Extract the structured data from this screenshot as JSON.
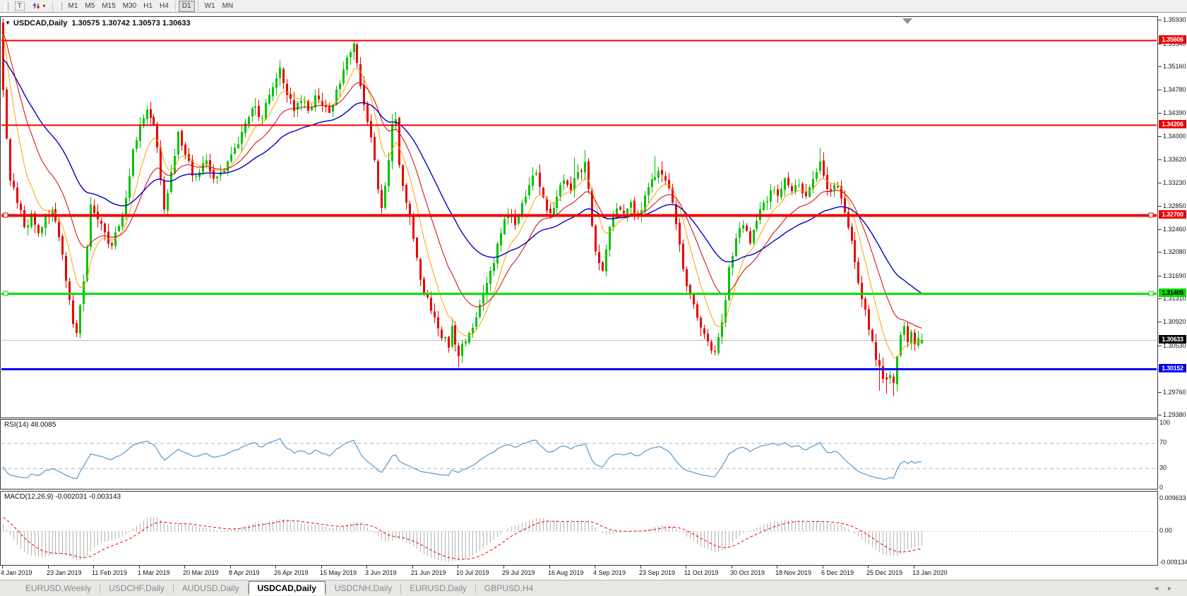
{
  "toolbar": {
    "text_tool_glyph": "T",
    "caret_glyph": "▾",
    "timeframes": [
      "M1",
      "M5",
      "M15",
      "M30",
      "H1",
      "H4",
      "D1",
      "W1",
      "MN"
    ],
    "active_timeframe": "D1"
  },
  "chart": {
    "collapse_glyph": "▼",
    "title": "USDCAD,Daily",
    "ohlc_text": "1.30575 1.30742 1.30573 1.30633"
  },
  "rsi": {
    "label": "RSI(14) 48.0085",
    "value": 48.0085,
    "axis": [
      {
        "text": "100",
        "v": 100
      },
      {
        "text": "70",
        "v": 70
      },
      {
        "text": "30",
        "v": 30
      },
      {
        "text": "0",
        "v": 0
      }
    ]
  },
  "macd": {
    "label": "MACD(12,26,9) -0.002031 -0.003143",
    "main_value": -0.002031,
    "signal_value": -0.003143,
    "axis": [
      {
        "text": "0.009633",
        "y": 10
      },
      {
        "text": "0.00",
        "y": 56
      },
      {
        "text": "-0.009134",
        "y": 101
      }
    ]
  },
  "price_axis": {
    "ticks": [
      "1.35930",
      "1.35540",
      "1.35160",
      "1.34780",
      "1.34390",
      "1.34000",
      "1.33620",
      "1.33230",
      "1.32850",
      "1.32460",
      "1.32080",
      "1.31690",
      "1.31310",
      "1.30920",
      "1.30530",
      "1.30140",
      "1.29760",
      "1.29380"
    ],
    "badges": [
      {
        "text": "1.35606",
        "price": 1.35606,
        "bg": "#ee0000",
        "fg": "#ffffff"
      },
      {
        "text": "1.34206",
        "price": 1.34206,
        "bg": "#ee0000",
        "fg": "#ffffff"
      },
      {
        "text": "1.32700",
        "price": 1.327,
        "bg": "#ee0000",
        "fg": "#ffffff"
      },
      {
        "text": "1.31405",
        "price": 1.31405,
        "bg": "#00dd00",
        "fg": "#000000"
      },
      {
        "text": "1.30633",
        "price": 1.30633,
        "bg": "#000000",
        "fg": "#ffffff"
      },
      {
        "text": "1.30152",
        "price": 1.30152,
        "bg": "#0000ee",
        "fg": "#ffffff"
      }
    ]
  },
  "date_axis": [
    "4 Jan 2019",
    "23 Jan 2019",
    "11 Feb 2019",
    "1 Mar 2019",
    "20 Mar 2019",
    "8 Apr 2019",
    "26 Apr 2019",
    "15 May 2019",
    "3 Jun 2019",
    "21 Jun 2019",
    "10 Jul 2019",
    "29 Jul 2019",
    "16 Aug 2019",
    "4 Sep 2019",
    "23 Sep 2019",
    "11 Oct 2019",
    "30 Oct 2019",
    "18 Nov 2019",
    "6 Dec 2019",
    "25 Dec 2019",
    "13 Jan 2020"
  ],
  "tabs": {
    "items": [
      {
        "label": "EURUSD,Weekly",
        "active": false
      },
      {
        "label": "USDCHF,Daily",
        "active": false
      },
      {
        "label": "AUDUSD,Daily",
        "active": false
      },
      {
        "label": "USDCAD,Daily",
        "active": true
      },
      {
        "label": "USDCNH,Daily",
        "active": false
      },
      {
        "label": "EURUSD,Daily",
        "active": false
      },
      {
        "label": "GBPUSD,H4",
        "active": false
      }
    ],
    "scroll_left": "◄",
    "scroll_right": "►"
  },
  "chart_data": {
    "type": "candlestick",
    "symbol": "USDCAD",
    "timeframe": "Daily",
    "current_bar": {
      "open": 1.30575,
      "high": 1.30742,
      "low": 1.30573,
      "close": 1.30633
    },
    "bar_count": 263,
    "bar_step": 4.965,
    "bars_per_tick": 13,
    "ylim": [
      1.2935,
      1.3597
    ],
    "x_tick_labels": [
      "4 Jan 2019",
      "23 Jan 2019",
      "11 Feb 2019",
      "1 Mar 2019",
      "20 Mar 2019",
      "8 Apr 2019",
      "26 Apr 2019",
      "15 May 2019",
      "3 Jun 2019",
      "21 Jun 2019",
      "10 Jul 2019",
      "29 Jul 2019",
      "16 Aug 2019",
      "4 Sep 2019",
      "23 Sep 2019",
      "11 Oct 2019",
      "30 Oct 2019",
      "18 Nov 2019",
      "6 Dec 2019",
      "25 Dec 2019",
      "13 Jan 2020"
    ],
    "close_anchors": [
      [
        0,
        1.348
      ],
      [
        1,
        1.3395
      ],
      [
        2,
        1.333
      ],
      [
        4,
        1.329
      ],
      [
        6,
        1.325
      ],
      [
        8,
        1.3272
      ],
      [
        10,
        1.3242
      ],
      [
        12,
        1.3268
      ],
      [
        14,
        1.328
      ],
      [
        16,
        1.3232
      ],
      [
        18,
        1.316
      ],
      [
        20,
        1.3092
      ],
      [
        21,
        1.3076
      ],
      [
        23,
        1.316
      ],
      [
        25,
        1.3288
      ],
      [
        27,
        1.3262
      ],
      [
        29,
        1.324
      ],
      [
        31,
        1.3222
      ],
      [
        33,
        1.3252
      ],
      [
        35,
        1.33
      ],
      [
        37,
        1.3378
      ],
      [
        39,
        1.3418
      ],
      [
        41,
        1.3444
      ],
      [
        43,
        1.342
      ],
      [
        45,
        1.333
      ],
      [
        46,
        1.3282
      ],
      [
        48,
        1.334
      ],
      [
        50,
        1.3408
      ],
      [
        52,
        1.3372
      ],
      [
        54,
        1.3336
      ],
      [
        56,
        1.3342
      ],
      [
        58,
        1.336
      ],
      [
        60,
        1.333
      ],
      [
        62,
        1.3342
      ],
      [
        64,
        1.336
      ],
      [
        66,
        1.3382
      ],
      [
        68,
        1.341
      ],
      [
        70,
        1.3432
      ],
      [
        72,
        1.345
      ],
      [
        74,
        1.343
      ],
      [
        76,
        1.3468
      ],
      [
        78,
        1.3498
      ],
      [
        79,
        1.3514
      ],
      [
        81,
        1.3472
      ],
      [
        83,
        1.3442
      ],
      [
        85,
        1.346
      ],
      [
        87,
        1.3442
      ],
      [
        89,
        1.347
      ],
      [
        91,
        1.3452
      ],
      [
        93,
        1.344
      ],
      [
        95,
        1.3478
      ],
      [
        97,
        1.3512
      ],
      [
        99,
        1.354
      ],
      [
        100,
        1.3554
      ],
      [
        101,
        1.3522
      ],
      [
        103,
        1.3452
      ],
      [
        105,
        1.34
      ],
      [
        107,
        1.3312
      ],
      [
        108,
        1.3282
      ],
      [
        110,
        1.3362
      ],
      [
        111,
        1.342
      ],
      [
        112,
        1.3432
      ],
      [
        113,
        1.3352
      ],
      [
        115,
        1.3292
      ],
      [
        117,
        1.323
      ],
      [
        119,
        1.3162
      ],
      [
        121,
        1.3132
      ],
      [
        123,
        1.31
      ],
      [
        125,
        1.3068
      ],
      [
        127,
        1.3052
      ],
      [
        128,
        1.3088
      ],
      [
        130,
        1.3036
      ],
      [
        132,
        1.306
      ],
      [
        134,
        1.3082
      ],
      [
        136,
        1.312
      ],
      [
        138,
        1.316
      ],
      [
        140,
        1.3192
      ],
      [
        142,
        1.324
      ],
      [
        144,
        1.3272
      ],
      [
        146,
        1.3252
      ],
      [
        148,
        1.3292
      ],
      [
        150,
        1.332
      ],
      [
        152,
        1.3342
      ],
      [
        154,
        1.3302
      ],
      [
        156,
        1.3272
      ],
      [
        158,
        1.3302
      ],
      [
        160,
        1.333
      ],
      [
        162,
        1.3312
      ],
      [
        164,
        1.3342
      ],
      [
        166,
        1.336
      ],
      [
        167,
        1.3312
      ],
      [
        168,
        1.3252
      ],
      [
        169,
        1.3212
      ],
      [
        171,
        1.318
      ],
      [
        173,
        1.325
      ],
      [
        175,
        1.3282
      ],
      [
        177,
        1.3272
      ],
      [
        179,
        1.3292
      ],
      [
        181,
        1.3272
      ],
      [
        183,
        1.3302
      ],
      [
        185,
        1.3332
      ],
      [
        187,
        1.3342
      ],
      [
        189,
        1.333
      ],
      [
        191,
        1.3292
      ],
      [
        193,
        1.3222
      ],
      [
        195,
        1.3152
      ],
      [
        197,
        1.3122
      ],
      [
        199,
        1.3082
      ],
      [
        201,
        1.3062
      ],
      [
        203,
        1.3046
      ],
      [
        205,
        1.3092
      ],
      [
        207,
        1.3182
      ],
      [
        209,
        1.3232
      ],
      [
        211,
        1.3252
      ],
      [
        213,
        1.3222
      ],
      [
        215,
        1.3262
      ],
      [
        217,
        1.3292
      ],
      [
        219,
        1.3312
      ],
      [
        221,
        1.3302
      ],
      [
        223,
        1.3332
      ],
      [
        225,
        1.3312
      ],
      [
        227,
        1.3322
      ],
      [
        229,
        1.3302
      ],
      [
        231,
        1.3332
      ],
      [
        233,
        1.336
      ],
      [
        235,
        1.3312
      ],
      [
        237,
        1.3322
      ],
      [
        239,
        1.33
      ],
      [
        241,
        1.3252
      ],
      [
        243,
        1.3192
      ],
      [
        245,
        1.3132
      ],
      [
        247,
        1.3082
      ],
      [
        249,
        1.3032
      ],
      [
        251,
        1.2998
      ],
      [
        253,
        1.3006
      ],
      [
        254,
        1.2992
      ],
      [
        255,
        1.3036
      ],
      [
        256,
        1.307
      ],
      [
        257,
        1.3086
      ],
      [
        258,
        1.306
      ],
      [
        259,
        1.3076
      ],
      [
        260,
        1.3056
      ],
      [
        261,
        1.3066
      ],
      [
        262,
        1.30633
      ]
    ],
    "pre_anchors": [
      [
        -130,
        1.334
      ],
      [
        -60,
        1.338
      ],
      [
        -30,
        1.342
      ],
      [
        -18,
        1.35
      ],
      [
        -10,
        1.366
      ],
      [
        -5,
        1.3645
      ],
      [
        -1,
        1.3545
      ]
    ],
    "first_bar_open": 1.359,
    "noise_amp": 0.0009,
    "wick_overrides": {
      "0": {
        "h": 1.3596
      },
      "21": {
        "l": 1.3068
      },
      "100": {
        "h": 1.3561
      },
      "101": {
        "h": 1.3556
      },
      "111": {
        "h": 1.3438
      },
      "130": {
        "l": 1.3018
      },
      "131": {
        "l": 1.3026
      },
      "163": {
        "h": 1.3366
      },
      "166": {
        "h": 1.3378
      },
      "186": {
        "h": 1.3368
      },
      "188": {
        "h": 1.336
      },
      "202": {
        "l": 1.304
      },
      "203": {
        "l": 1.3038
      },
      "233": {
        "h": 1.3382
      },
      "250": {
        "l": 1.2979
      },
      "252": {
        "l": 1.2974
      },
      "254": {
        "l": 1.297
      },
      "257": {
        "h": 1.3094
      }
    },
    "colors": {
      "up": "#00c300",
      "down": "#ea0000",
      "current_price_line": "#c0c0c0",
      "background": "#ffffff"
    },
    "horizontal_lines": [
      {
        "price": 1.35606,
        "color": "#ee0000",
        "width": 2,
        "handles": false
      },
      {
        "price": 1.34206,
        "color": "#ee0000",
        "width": 2,
        "handles": false
      },
      {
        "price": 1.327,
        "color": "#ee0000",
        "width": 4,
        "handles": true
      },
      {
        "price": 1.31405,
        "color": "#00dd00",
        "width": 3,
        "handles": true
      },
      {
        "price": 1.30152,
        "color": "#0000ee",
        "width": 3,
        "handles": false
      }
    ],
    "current_price": 1.30633,
    "moving_averages": [
      {
        "period": 8,
        "type": "ema",
        "color": "#ffa000",
        "width": 1
      },
      {
        "period": 18,
        "type": "ema",
        "color": "#d40000",
        "width": 1
      },
      {
        "period": 40,
        "type": "ema",
        "color": "#0000c0",
        "width": 1.4
      }
    ],
    "indicators": {
      "rsi": {
        "period": 14,
        "levels": [
          30,
          70
        ],
        "color": "#5599d0",
        "level_color": "#b9b9b9"
      },
      "macd": {
        "fast": 12,
        "slow": 26,
        "signal": 9,
        "histogram_color": "#b4b4b4",
        "signal_color": "#ee0000",
        "zero_color": "#cfcfcf"
      }
    },
    "shift_marker_x": 1284
  }
}
